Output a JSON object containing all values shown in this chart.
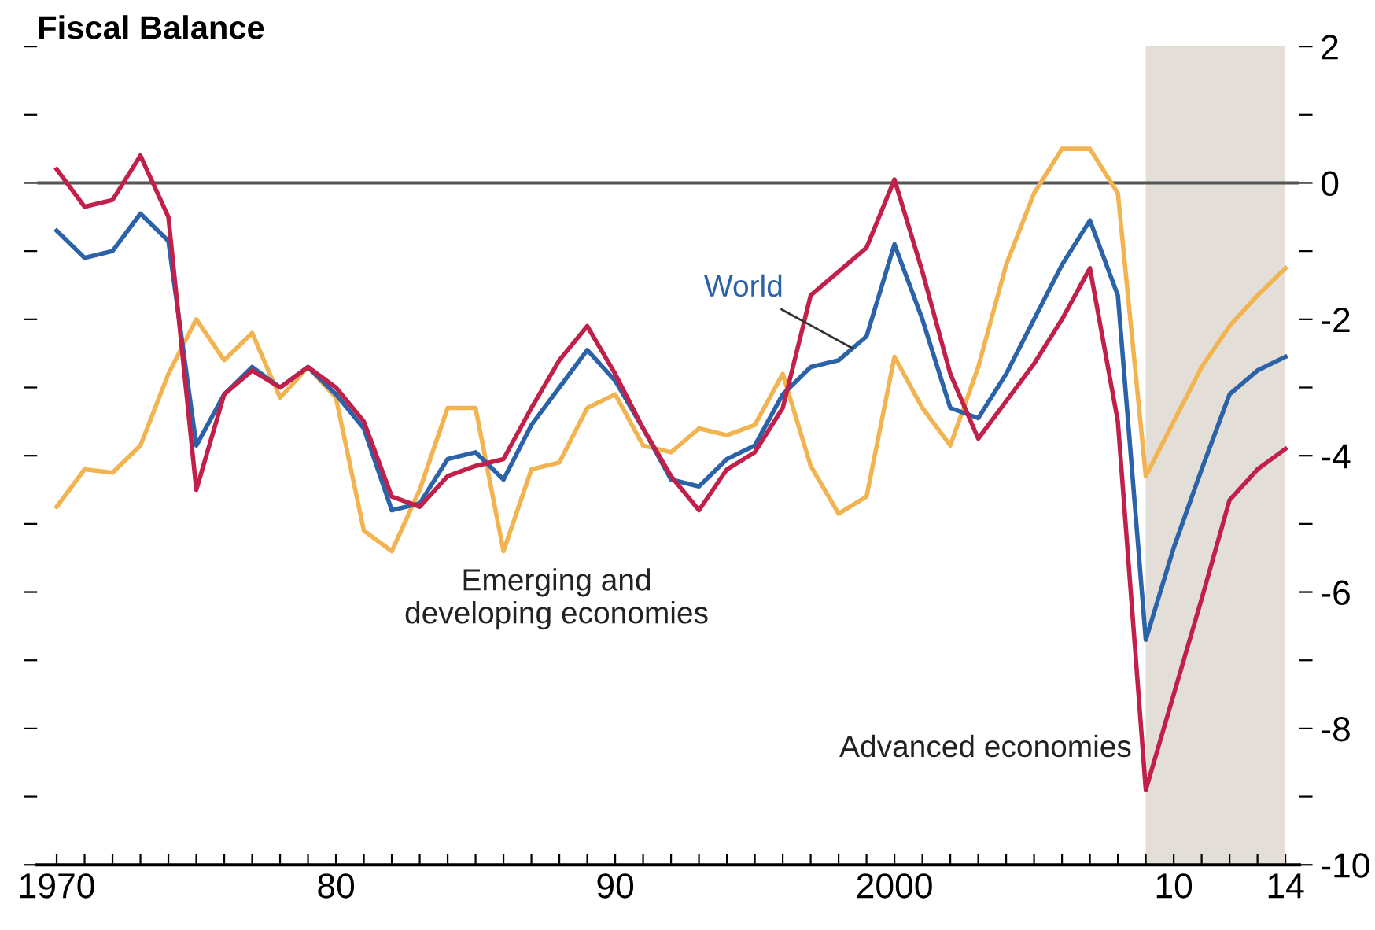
{
  "chart_data": {
    "type": "line",
    "title": "Fiscal Balance",
    "x": [
      1970,
      1971,
      1972,
      1973,
      1974,
      1975,
      1976,
      1977,
      1978,
      1979,
      1980,
      1981,
      1982,
      1983,
      1984,
      1985,
      1986,
      1987,
      1988,
      1989,
      1990,
      1991,
      1992,
      1993,
      1994,
      1995,
      1996,
      1997,
      1998,
      1999,
      2000,
      2001,
      2002,
      2003,
      2004,
      2005,
      2006,
      2007,
      2008,
      2009,
      2010,
      2011,
      2012,
      2013,
      2014
    ],
    "series": [
      {
        "name": "Emerging and developing economies",
        "color": "#f2b450",
        "values": [
          -4.75,
          -4.2,
          -4.25,
          -3.85,
          -2.8,
          -2.0,
          -2.6,
          -2.2,
          -3.15,
          -2.7,
          -3.15,
          -5.1,
          -5.4,
          -4.5,
          -3.3,
          -3.3,
          -5.4,
          -4.2,
          -4.1,
          -3.3,
          -3.1,
          -3.85,
          -3.95,
          -3.6,
          -3.7,
          -3.55,
          -2.8,
          -4.15,
          -4.85,
          -4.6,
          -2.55,
          -3.3,
          -3.85,
          -2.7,
          -1.2,
          -0.15,
          0.5,
          0.5,
          -0.15,
          -4.3,
          -3.5,
          -2.7,
          -2.1,
          -1.65,
          -1.25
        ]
      },
      {
        "name": "World",
        "color": "#2b62a8",
        "values": [
          -0.7,
          -1.1,
          -1.0,
          -0.45,
          -0.85,
          -3.85,
          -3.1,
          -2.7,
          -3.0,
          -2.7,
          -3.1,
          -3.6,
          -4.8,
          -4.7,
          -4.05,
          -3.95,
          -4.35,
          -3.55,
          -3.0,
          -2.45,
          -2.9,
          -3.6,
          -4.35,
          -4.45,
          -4.05,
          -3.85,
          -3.1,
          -2.7,
          -2.6,
          -2.25,
          -0.9,
          -2.0,
          -3.3,
          -3.45,
          -2.8,
          -2.0,
          -1.2,
          -0.55,
          -1.65,
          -6.7,
          -5.35,
          -4.2,
          -3.1,
          -2.75,
          -2.55
        ]
      },
      {
        "name": "Advanced economies",
        "color": "#c0204a",
        "values": [
          0.2,
          -0.35,
          -0.25,
          0.4,
          -0.5,
          -4.5,
          -3.1,
          -2.75,
          -3.0,
          -2.7,
          -3.0,
          -3.5,
          -4.6,
          -4.75,
          -4.3,
          -4.15,
          -4.05,
          -3.3,
          -2.6,
          -2.1,
          -2.8,
          -3.6,
          -4.3,
          -4.8,
          -4.2,
          -3.95,
          -3.3,
          -1.65,
          -1.3,
          -0.95,
          0.05,
          -1.3,
          -2.8,
          -3.75,
          -3.2,
          -2.65,
          -2.0,
          -1.25,
          -3.5,
          -8.9,
          -7.5,
          -6.1,
          -4.65,
          -4.2,
          -3.9
        ]
      }
    ],
    "xlim": [
      1969.3,
      2014.5
    ],
    "xticks": [
      {
        "value": 1970,
        "label": "1970"
      },
      {
        "value": 1971,
        "label": null
      },
      {
        "value": 1972,
        "label": null
      },
      {
        "value": 1973,
        "label": null
      },
      {
        "value": 1974,
        "label": null
      },
      {
        "value": 1975,
        "label": null
      },
      {
        "value": 1976,
        "label": null
      },
      {
        "value": 1977,
        "label": null
      },
      {
        "value": 1978,
        "label": null
      },
      {
        "value": 1979,
        "label": null
      },
      {
        "value": 1980,
        "label": "80"
      },
      {
        "value": 1981,
        "label": null
      },
      {
        "value": 1982,
        "label": null
      },
      {
        "value": 1983,
        "label": null
      },
      {
        "value": 1984,
        "label": null
      },
      {
        "value": 1985,
        "label": null
      },
      {
        "value": 1986,
        "label": null
      },
      {
        "value": 1987,
        "label": null
      },
      {
        "value": 1988,
        "label": null
      },
      {
        "value": 1989,
        "label": null
      },
      {
        "value": 1990,
        "label": "90"
      },
      {
        "value": 1991,
        "label": null
      },
      {
        "value": 1992,
        "label": null
      },
      {
        "value": 1993,
        "label": null
      },
      {
        "value": 1994,
        "label": null
      },
      {
        "value": 1995,
        "label": null
      },
      {
        "value": 1996,
        "label": null
      },
      {
        "value": 1997,
        "label": null
      },
      {
        "value": 1998,
        "label": null
      },
      {
        "value": 1999,
        "label": null
      },
      {
        "value": 2000,
        "label": "2000"
      },
      {
        "value": 2001,
        "label": null
      },
      {
        "value": 2002,
        "label": null
      },
      {
        "value": 2003,
        "label": null
      },
      {
        "value": 2004,
        "label": null
      },
      {
        "value": 2005,
        "label": null
      },
      {
        "value": 2006,
        "label": null
      },
      {
        "value": 2007,
        "label": null
      },
      {
        "value": 2008,
        "label": null
      },
      {
        "value": 2009,
        "label": null
      },
      {
        "value": 2010,
        "label": "10"
      },
      {
        "value": 2011,
        "label": null
      },
      {
        "value": 2012,
        "label": null
      },
      {
        "value": 2013,
        "label": null
      },
      {
        "value": 2014,
        "label": "14"
      }
    ],
    "ylim": [
      -10,
      2
    ],
    "yticks": [
      2,
      {
        "value": 1,
        "label": null
      },
      0,
      {
        "value": -1,
        "label": null
      },
      -2,
      {
        "value": -3,
        "label": null
      },
      -4,
      {
        "value": -5,
        "label": null
      },
      -6,
      {
        "value": -7,
        "label": null
      },
      -8,
      {
        "value": -9,
        "label": null
      },
      -10
    ],
    "ref_lines": [
      {
        "axis": "y",
        "value": 0,
        "color": "#555555"
      }
    ],
    "bands": [
      {
        "axis": "x",
        "from": 2009,
        "to": 2014,
        "color": "#e3dfd8"
      }
    ],
    "grid": false,
    "legend": false,
    "marker": "none",
    "line_style": "solid"
  }
}
